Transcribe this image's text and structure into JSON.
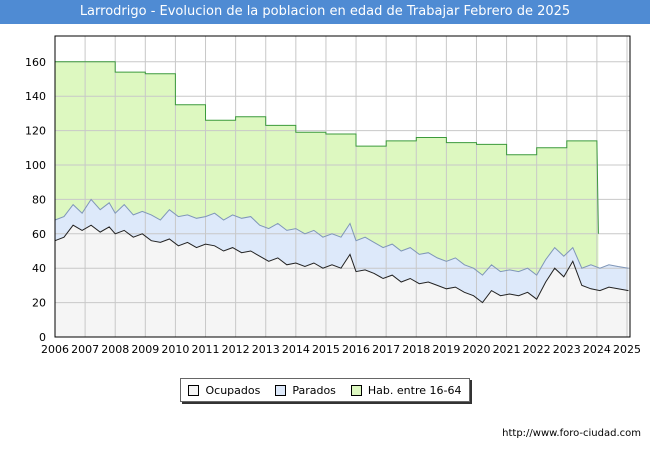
{
  "chart_data": {
    "type": "area",
    "title": "Larrodrigo - Evolucion de la poblacion en edad de Trabajar Febrero de 2025",
    "x_tick_labels": [
      "2006",
      "2007",
      "2008",
      "2009",
      "2010",
      "2011",
      "2012",
      "2013",
      "2014",
      "2015",
      "2016",
      "2017",
      "2018",
      "2019",
      "2020",
      "2021",
      "2022",
      "2023",
      "2024",
      "2025"
    ],
    "y_tick_labels": [
      "0",
      "20",
      "40",
      "60",
      "80",
      "100",
      "120",
      "140",
      "160"
    ],
    "ylim": [
      0,
      175
    ],
    "xlim": [
      2006.0,
      2025.1
    ],
    "grid": true,
    "legend_position": "bottom",
    "series": [
      {
        "name": "Hab. entre 16-64",
        "color": "#ddf8c0",
        "line_color": "#3c9a3c",
        "points": [
          [
            2006.0,
            160
          ],
          [
            2008.0,
            160
          ],
          [
            2008.0,
            154
          ],
          [
            2009.0,
            154
          ],
          [
            2009.0,
            153
          ],
          [
            2010.0,
            153
          ],
          [
            2010.0,
            135
          ],
          [
            2011.0,
            135
          ],
          [
            2011.0,
            126
          ],
          [
            2012.0,
            126
          ],
          [
            2012.0,
            128
          ],
          [
            2013.0,
            128
          ],
          [
            2013.0,
            123
          ],
          [
            2014.0,
            123
          ],
          [
            2014.0,
            119
          ],
          [
            2015.0,
            119
          ],
          [
            2015.0,
            118
          ],
          [
            2016.0,
            118
          ],
          [
            2016.0,
            111
          ],
          [
            2017.0,
            111
          ],
          [
            2017.0,
            114
          ],
          [
            2018.0,
            114
          ],
          [
            2018.0,
            116
          ],
          [
            2019.0,
            116
          ],
          [
            2019.0,
            113
          ],
          [
            2020.0,
            113
          ],
          [
            2020.0,
            112
          ],
          [
            2021.0,
            112
          ],
          [
            2021.0,
            106
          ],
          [
            2022.0,
            106
          ],
          [
            2022.0,
            110
          ],
          [
            2023.0,
            110
          ],
          [
            2023.0,
            114
          ],
          [
            2024.0,
            114
          ],
          [
            2024.05,
            60
          ]
        ]
      },
      {
        "name": "Parados",
        "color": "#dde9fa",
        "line_color": "#7f96b8",
        "points": [
          [
            2006.0,
            68
          ],
          [
            2006.3,
            70
          ],
          [
            2006.6,
            77
          ],
          [
            2006.9,
            72
          ],
          [
            2007.2,
            80
          ],
          [
            2007.5,
            74
          ],
          [
            2007.8,
            78
          ],
          [
            2008.0,
            72
          ],
          [
            2008.3,
            77
          ],
          [
            2008.6,
            71
          ],
          [
            2008.9,
            73
          ],
          [
            2009.2,
            71
          ],
          [
            2009.5,
            68
          ],
          [
            2009.8,
            74
          ],
          [
            2010.1,
            70
          ],
          [
            2010.4,
            71
          ],
          [
            2010.7,
            69
          ],
          [
            2011.0,
            70
          ],
          [
            2011.3,
            72
          ],
          [
            2011.6,
            68
          ],
          [
            2011.9,
            71
          ],
          [
            2012.2,
            69
          ],
          [
            2012.5,
            70
          ],
          [
            2012.8,
            65
          ],
          [
            2013.1,
            63
          ],
          [
            2013.4,
            66
          ],
          [
            2013.7,
            62
          ],
          [
            2014.0,
            63
          ],
          [
            2014.3,
            60
          ],
          [
            2014.6,
            62
          ],
          [
            2014.9,
            58
          ],
          [
            2015.2,
            60
          ],
          [
            2015.5,
            58
          ],
          [
            2015.8,
            66
          ],
          [
            2016.0,
            56
          ],
          [
            2016.3,
            58
          ],
          [
            2016.6,
            55
          ],
          [
            2016.9,
            52
          ],
          [
            2017.2,
            54
          ],
          [
            2017.5,
            50
          ],
          [
            2017.8,
            52
          ],
          [
            2018.1,
            48
          ],
          [
            2018.4,
            49
          ],
          [
            2018.7,
            46
          ],
          [
            2019.0,
            44
          ],
          [
            2019.3,
            46
          ],
          [
            2019.6,
            42
          ],
          [
            2019.9,
            40
          ],
          [
            2020.2,
            36
          ],
          [
            2020.5,
            42
          ],
          [
            2020.8,
            38
          ],
          [
            2021.1,
            39
          ],
          [
            2021.4,
            38
          ],
          [
            2021.7,
            40
          ],
          [
            2022.0,
            36
          ],
          [
            2022.3,
            45
          ],
          [
            2022.6,
            52
          ],
          [
            2022.9,
            47
          ],
          [
            2023.2,
            52
          ],
          [
            2023.5,
            40
          ],
          [
            2023.8,
            42
          ],
          [
            2024.1,
            40
          ],
          [
            2024.4,
            42
          ],
          [
            2024.7,
            41
          ],
          [
            2025.05,
            40
          ]
        ]
      },
      {
        "name": "Ocupados",
        "color": "#f5f5f5",
        "line_color": "#222222",
        "points": [
          [
            2006.0,
            56
          ],
          [
            2006.3,
            58
          ],
          [
            2006.6,
            65
          ],
          [
            2006.9,
            62
          ],
          [
            2007.2,
            65
          ],
          [
            2007.5,
            61
          ],
          [
            2007.8,
            64
          ],
          [
            2008.0,
            60
          ],
          [
            2008.3,
            62
          ],
          [
            2008.6,
            58
          ],
          [
            2008.9,
            60
          ],
          [
            2009.2,
            56
          ],
          [
            2009.5,
            55
          ],
          [
            2009.8,
            57
          ],
          [
            2010.1,
            53
          ],
          [
            2010.4,
            55
          ],
          [
            2010.7,
            52
          ],
          [
            2011.0,
            54
          ],
          [
            2011.3,
            53
          ],
          [
            2011.6,
            50
          ],
          [
            2011.9,
            52
          ],
          [
            2012.2,
            49
          ],
          [
            2012.5,
            50
          ],
          [
            2012.8,
            47
          ],
          [
            2013.1,
            44
          ],
          [
            2013.4,
            46
          ],
          [
            2013.7,
            42
          ],
          [
            2014.0,
            43
          ],
          [
            2014.3,
            41
          ],
          [
            2014.6,
            43
          ],
          [
            2014.9,
            40
          ],
          [
            2015.2,
            42
          ],
          [
            2015.5,
            40
          ],
          [
            2015.8,
            48
          ],
          [
            2016.0,
            38
          ],
          [
            2016.3,
            39
          ],
          [
            2016.6,
            37
          ],
          [
            2016.9,
            34
          ],
          [
            2017.2,
            36
          ],
          [
            2017.5,
            32
          ],
          [
            2017.8,
            34
          ],
          [
            2018.1,
            31
          ],
          [
            2018.4,
            32
          ],
          [
            2018.7,
            30
          ],
          [
            2019.0,
            28
          ],
          [
            2019.3,
            29
          ],
          [
            2019.6,
            26
          ],
          [
            2019.9,
            24
          ],
          [
            2020.2,
            20
          ],
          [
            2020.5,
            27
          ],
          [
            2020.8,
            24
          ],
          [
            2021.1,
            25
          ],
          [
            2021.4,
            24
          ],
          [
            2021.7,
            26
          ],
          [
            2022.0,
            22
          ],
          [
            2022.3,
            32
          ],
          [
            2022.6,
            40
          ],
          [
            2022.9,
            35
          ],
          [
            2023.2,
            44
          ],
          [
            2023.5,
            30
          ],
          [
            2023.8,
            28
          ],
          [
            2024.1,
            27
          ],
          [
            2024.4,
            29
          ],
          [
            2024.7,
            28
          ],
          [
            2025.05,
            27
          ]
        ]
      }
    ],
    "legend": [
      "Ocupados",
      "Parados",
      "Hab. entre 16-64"
    ],
    "source": "http://www.foro-ciudad.com"
  }
}
